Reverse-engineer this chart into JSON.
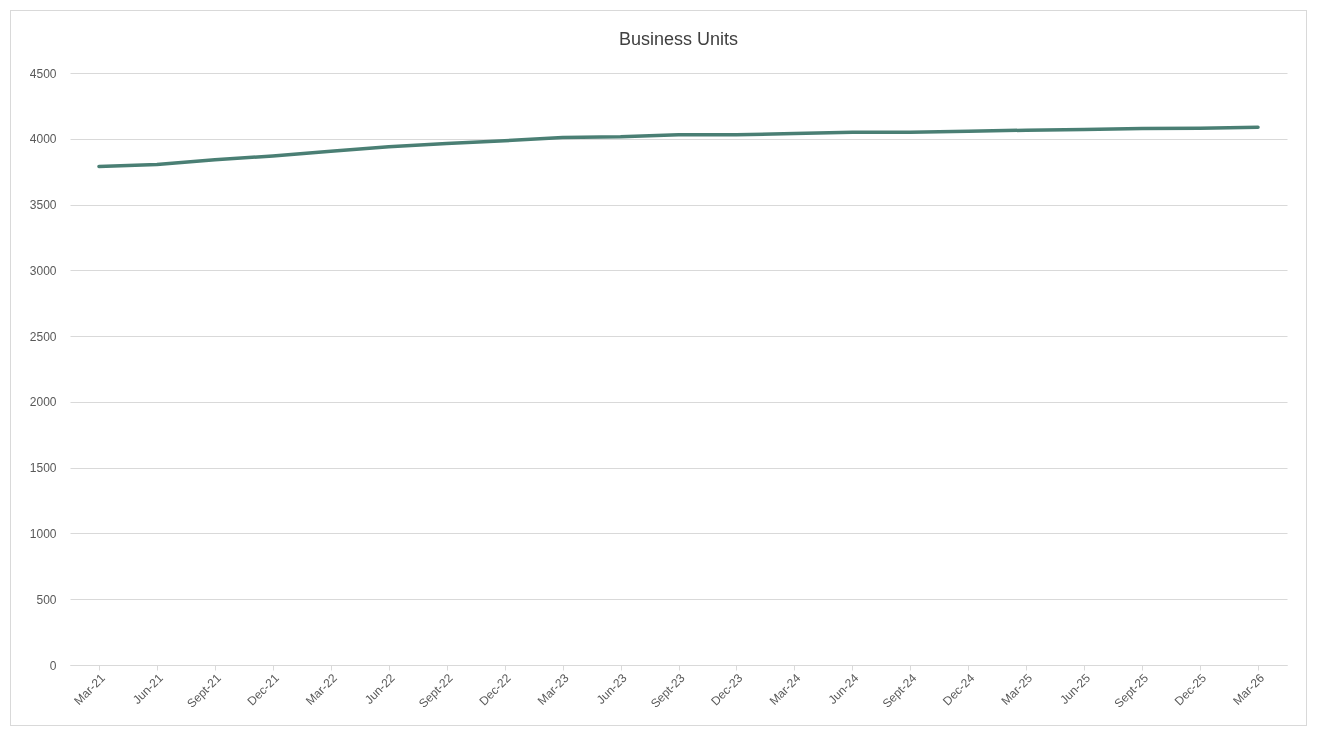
{
  "chart_data": {
    "type": "line",
    "title": "Business Units",
    "categories": [
      "Mar-21",
      "Jun-21",
      "Sept-21",
      "Dec-21",
      "Mar-22",
      "Jun-22",
      "Sept-22",
      "Dec-22",
      "Mar-23",
      "Jun-23",
      "Sept-23",
      "Dec-23",
      "Mar-24",
      "Jun-24",
      "Sept-24",
      "Dec-24",
      "Mar-25",
      "Jun-25",
      "Sept-25",
      "Dec-25",
      "Mar-26"
    ],
    "series": [
      {
        "color": "#4a7f74",
        "values": [
          3790,
          3805,
          3840,
          3870,
          3905,
          3940,
          3965,
          3985,
          4010,
          4015,
          4030,
          4030,
          4040,
          4050,
          4050,
          4058,
          4065,
          4070,
          4078,
          4080,
          4088
        ]
      }
    ],
    "ylim": [
      0,
      4500
    ],
    "yticks": [
      0,
      500,
      1000,
      1500,
      2000,
      2500,
      3000,
      3500,
      4000,
      4500
    ],
    "grid": "y",
    "marker": "none",
    "line_style": "solid"
  }
}
